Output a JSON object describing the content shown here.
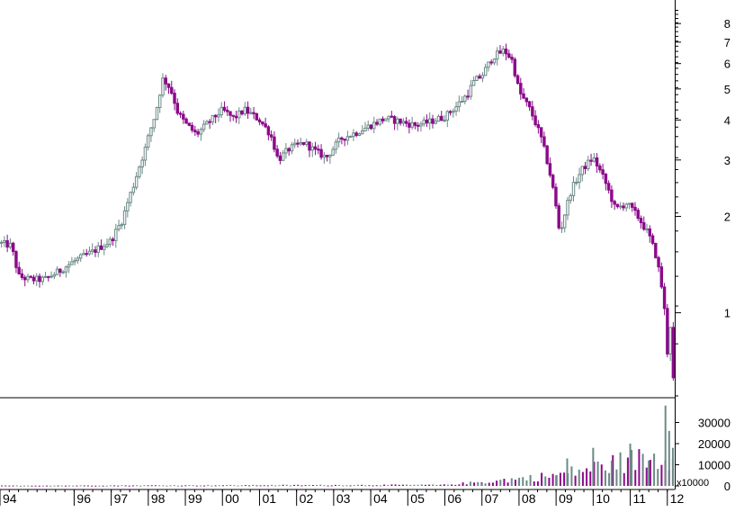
{
  "colors": {
    "background": "#ffffff",
    "up_candle": "#6b8a86",
    "down_candle": "#8b0a8b",
    "volume": "#6b8a86",
    "axis": "#000000"
  },
  "chart_data": {
    "type": "candlestick",
    "title": "",
    "xlabel": "",
    "ylabel": "",
    "price_scale": "log",
    "price_ylim": [
      0.55,
      9.0
    ],
    "price_ticks": [
      1,
      2,
      3,
      4,
      5,
      6,
      7,
      8
    ],
    "price_tick_labels": [
      "1",
      "2",
      "3",
      "4",
      "5",
      "6",
      "7",
      "8"
    ],
    "volume_ylim": [
      0,
      40000
    ],
    "volume_ticks": [
      0,
      10000,
      20000,
      30000
    ],
    "volume_tick_labels": [
      "0",
      "10000",
      "20000",
      "30000"
    ],
    "volume_multiplier_label": "x10000",
    "x_range": [
      1994.0,
      2012.2
    ],
    "x_ticks": [
      1994.0,
      1996.0,
      1997.0,
      1998.0,
      1999.0,
      2000.0,
      2001.0,
      2002.0,
      2003.0,
      2004.0,
      2005.0,
      2006.0,
      2007.0,
      2008.0,
      2009.0,
      2010.0,
      2011.0,
      2012.0
    ],
    "x_tick_labels": [
      "94",
      "96",
      "97",
      "98",
      "99",
      "00",
      "01",
      "02",
      "03",
      "04",
      "05",
      "06",
      "07",
      "08",
      "09",
      "10",
      "11",
      "12"
    ],
    "close_path": [
      [
        1994.0,
        1.65
      ],
      [
        1994.3,
        1.62
      ],
      [
        1994.5,
        1.3
      ],
      [
        1994.8,
        1.27
      ],
      [
        1995.2,
        1.27
      ],
      [
        1995.6,
        1.35
      ],
      [
        1996.0,
        1.45
      ],
      [
        1996.5,
        1.55
      ],
      [
        1997.0,
        1.68
      ],
      [
        1997.3,
        1.95
      ],
      [
        1997.6,
        2.5
      ],
      [
        1997.9,
        3.2
      ],
      [
        1998.2,
        4.2
      ],
      [
        1998.4,
        5.4
      ],
      [
        1998.6,
        5.0
      ],
      [
        1998.8,
        4.2
      ],
      [
        1999.0,
        3.9
      ],
      [
        1999.3,
        3.6
      ],
      [
        1999.6,
        3.9
      ],
      [
        2000.0,
        4.3
      ],
      [
        2000.3,
        4.05
      ],
      [
        2000.6,
        4.3
      ],
      [
        2001.0,
        4.0
      ],
      [
        2001.3,
        3.6
      ],
      [
        2001.5,
        3.0
      ],
      [
        2001.8,
        3.25
      ],
      [
        2002.2,
        3.4
      ],
      [
        2002.5,
        3.2
      ],
      [
        2002.8,
        3.05
      ],
      [
        2003.2,
        3.5
      ],
      [
        2003.6,
        3.65
      ],
      [
        2004.0,
        3.85
      ],
      [
        2004.4,
        4.05
      ],
      [
        2004.8,
        3.95
      ],
      [
        2005.2,
        3.85
      ],
      [
        2005.6,
        3.95
      ],
      [
        2006.0,
        4.1
      ],
      [
        2006.3,
        4.4
      ],
      [
        2006.6,
        4.8
      ],
      [
        2006.8,
        5.3
      ],
      [
        2007.0,
        5.5
      ],
      [
        2007.3,
        6.3
      ],
      [
        2007.6,
        6.6
      ],
      [
        2007.8,
        6.2
      ],
      [
        2008.0,
        4.9
      ],
      [
        2008.3,
        4.3
      ],
      [
        2008.6,
        3.5
      ],
      [
        2008.9,
        2.5
      ],
      [
        2009.1,
        1.75
      ],
      [
        2009.4,
        2.4
      ],
      [
        2009.7,
        2.8
      ],
      [
        2010.0,
        3.05
      ],
      [
        2010.3,
        2.6
      ],
      [
        2010.6,
        2.1
      ],
      [
        2010.9,
        2.2
      ],
      [
        2011.2,
        2.0
      ],
      [
        2011.5,
        1.75
      ],
      [
        2011.7,
        1.5
      ],
      [
        2011.9,
        1.1
      ],
      [
        2012.0,
        0.75
      ],
      [
        2012.1,
        0.95
      ],
      [
        2012.15,
        0.62
      ]
    ],
    "notable_volume": [
      [
        2007.0,
        1500
      ],
      [
        2008.0,
        2500
      ],
      [
        2009.0,
        5000
      ],
      [
        2009.3,
        13000
      ],
      [
        2010.0,
        18000
      ],
      [
        2010.5,
        12000
      ],
      [
        2011.0,
        20000
      ],
      [
        2011.5,
        12000
      ],
      [
        2011.95,
        38000
      ],
      [
        2012.05,
        26000
      ],
      [
        2012.15,
        18000
      ]
    ]
  }
}
